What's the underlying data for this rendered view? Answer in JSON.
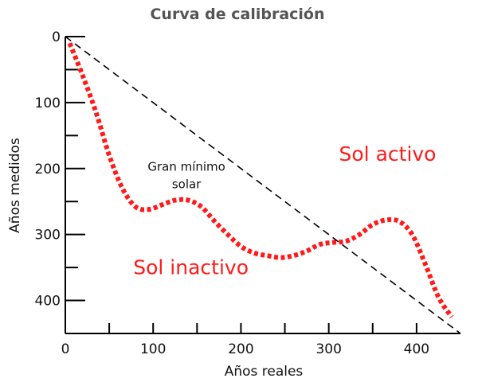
{
  "chart_data": {
    "type": "line",
    "title": "Curva de calibración",
    "xlabel": "Años reales",
    "ylabel": "Años medidos",
    "xlim": [
      0,
      450
    ],
    "ylim": [
      0,
      450
    ],
    "y_inverted": true,
    "grid": false,
    "x_ticks_labeled": [
      0,
      100,
      200,
      300,
      400
    ],
    "x_ticks_minor": [
      50,
      150,
      250,
      350
    ],
    "y_ticks_labeled": [
      0,
      100,
      200,
      300,
      400
    ],
    "y_ticks_minor": [
      50,
      150,
      250,
      350
    ],
    "series": [
      {
        "style": "dotted",
        "color": "#ff1a1a",
        "x": [
          5,
          20,
          35,
          50,
          65,
          80,
          95,
          110,
          125,
          140,
          155,
          170,
          185,
          200,
          215,
          230,
          245,
          260,
          275,
          290,
          305,
          320,
          335,
          350,
          365,
          380,
          395,
          410,
          425,
          440
        ],
        "y": [
          10,
          60,
          115,
          180,
          230,
          258,
          262,
          255,
          248,
          248,
          258,
          280,
          300,
          318,
          328,
          332,
          335,
          332,
          325,
          315,
          312,
          310,
          300,
          285,
          278,
          280,
          300,
          345,
          395,
          425
        ]
      },
      {
        "style": "dashed",
        "color": "#000000",
        "x": [
          0,
          450
        ],
        "y": [
          0,
          450
        ]
      }
    ],
    "annotations": [
      {
        "text": "Gran mínimo",
        "x": 138,
        "y": 203,
        "kind": "note"
      },
      {
        "text": "solar",
        "x": 138,
        "y": 230,
        "kind": "note"
      },
      {
        "text": "Sol activo",
        "x": 367,
        "y": 188,
        "kind": "region"
      },
      {
        "text": "Sol inactivo",
        "x": 143,
        "y": 360,
        "kind": "region"
      }
    ]
  }
}
